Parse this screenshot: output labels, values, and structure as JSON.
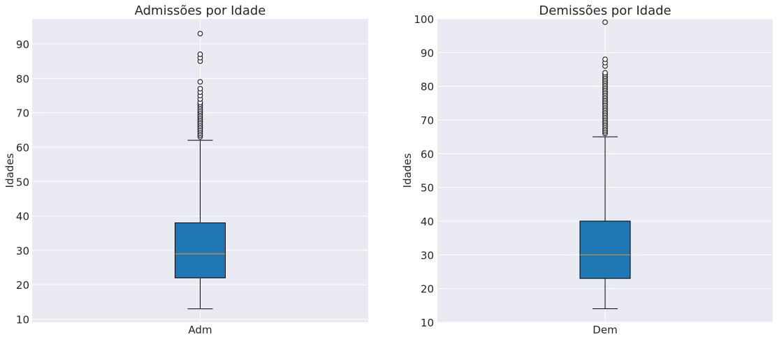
{
  "chart_data": [
    {
      "type": "box",
      "title": "Admissões por Idade",
      "xlabel": "",
      "ylabel": "Idades",
      "categories": [
        "Adm"
      ],
      "ylim": [
        9.1,
        97.3
      ],
      "yticks": [
        10,
        20,
        30,
        40,
        50,
        60,
        70,
        80,
        90
      ],
      "grid": true,
      "box": {
        "whislo": 13,
        "q1": 22,
        "median": 29,
        "q3": 38,
        "whishi": 62
      },
      "fliers": [
        63,
        63.5,
        64,
        64.5,
        65,
        65.5,
        66,
        66.5,
        67,
        67.5,
        68,
        68.5,
        69,
        69.5,
        70,
        70.5,
        71,
        71.5,
        72,
        72.5,
        73,
        74,
        75,
        76,
        77,
        79,
        85,
        86,
        87,
        93
      ],
      "colors": {
        "box_fill": "#1f77b4",
        "median": "#d98a2f",
        "background": "#eaeaf2"
      }
    },
    {
      "type": "box",
      "title": "Demissões por Idade",
      "xlabel": "",
      "ylabel": "Idades",
      "categories": [
        "Dem"
      ],
      "ylim": [
        10,
        100
      ],
      "yticks": [
        10,
        20,
        30,
        40,
        50,
        60,
        70,
        80,
        90,
        100
      ],
      "grid": true,
      "box": {
        "whislo": 14,
        "q1": 23,
        "median": 30,
        "q3": 40,
        "whishi": 65
      },
      "fliers": [
        66,
        66.5,
        67,
        67.5,
        68,
        68.5,
        69,
        69.5,
        70,
        70.5,
        71,
        71.5,
        72,
        72.5,
        73,
        73.5,
        74,
        74.5,
        75,
        75.5,
        76,
        76.5,
        77,
        77.5,
        78,
        78.5,
        79,
        79.5,
        80,
        80.5,
        81,
        81.5,
        82,
        82.5,
        83,
        83.5,
        84,
        86,
        87,
        88,
        99
      ],
      "colors": {
        "box_fill": "#1f77b4",
        "median": "#d98a2f",
        "background": "#eaeaf2"
      }
    }
  ]
}
